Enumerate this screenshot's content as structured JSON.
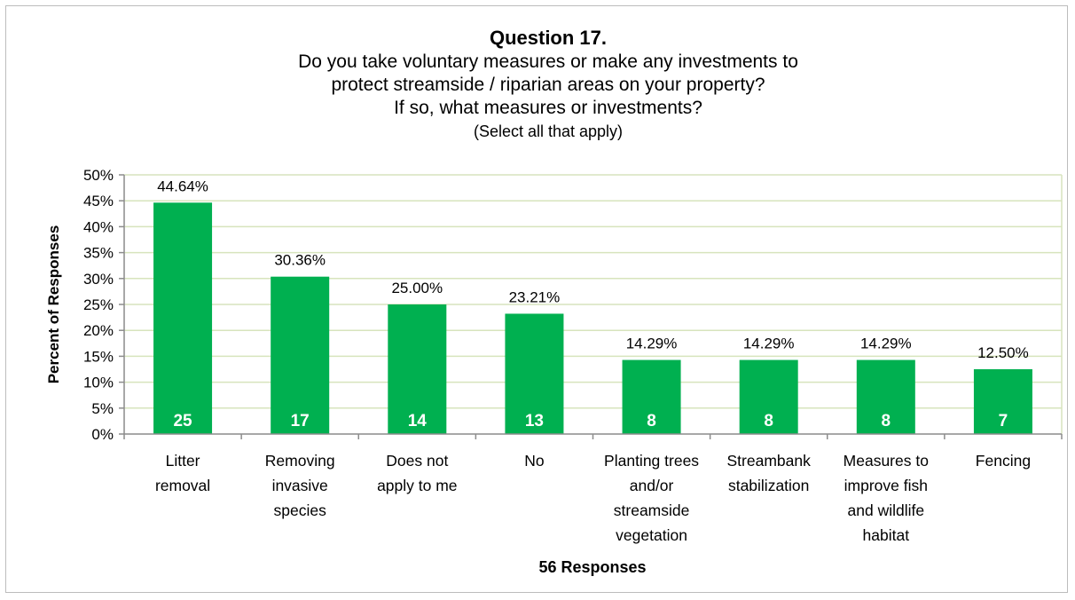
{
  "chart_data": {
    "type": "bar",
    "title": "Question 17.",
    "subtitle_lines": [
      "Do you take voluntary measures or make any investments to",
      "protect streamside / riparian areas on your property?",
      "If so, what measures or investments?"
    ],
    "note": "(Select all that apply)",
    "ylabel": "Percent of Responses",
    "xlabel": "56 Responses",
    "ylim": [
      0,
      50
    ],
    "yticks": [
      "0%",
      "5%",
      "10%",
      "15%",
      "20%",
      "25%",
      "30%",
      "35%",
      "40%",
      "45%",
      "50%"
    ],
    "grid": true,
    "categories": [
      [
        "Litter",
        "removal"
      ],
      [
        "Removing",
        "invasive",
        "species"
      ],
      [
        "Does not",
        "apply to me"
      ],
      [
        "No"
      ],
      [
        "Planting trees",
        "and/or",
        "streamside",
        "vegetation"
      ],
      [
        "Streambank",
        "stabilization"
      ],
      [
        "Measures to",
        "improve fish",
        "and wildlife",
        "habitat"
      ],
      [
        "Fencing"
      ]
    ],
    "values": [
      44.64,
      30.36,
      25.0,
      23.21,
      14.29,
      14.29,
      14.29,
      12.5
    ],
    "value_labels": [
      "44.64%",
      "30.36%",
      "25.00%",
      "23.21%",
      "14.29%",
      "14.29%",
      "14.29%",
      "12.50%"
    ],
    "counts": [
      "25",
      "17",
      "14",
      "13",
      "8",
      "8",
      "8",
      "7"
    ],
    "colors": {
      "bar": "#00b050",
      "grid": "#d7e4bd",
      "axis": "#8c8c8c",
      "count_text": "#ffffff"
    }
  }
}
